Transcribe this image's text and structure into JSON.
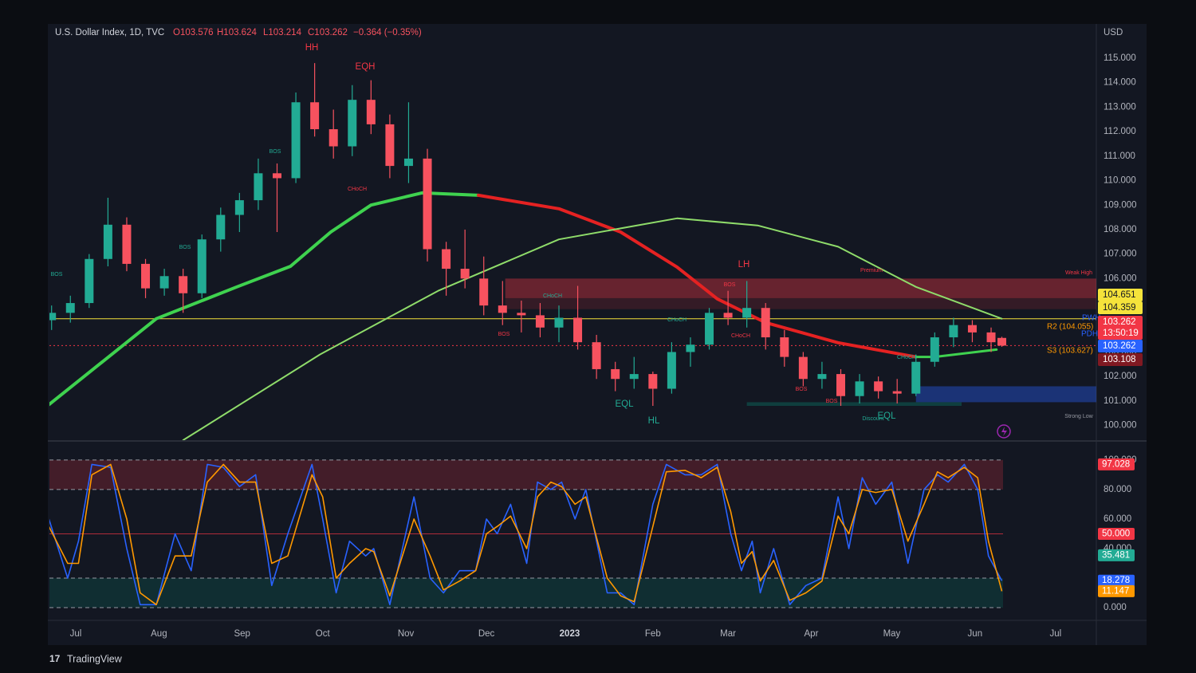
{
  "header": {
    "symbol": "U.S. Dollar Index, 1D, TVC",
    "ohlc": [
      "O103.576",
      "H103.624",
      "L103.214",
      "C103.262",
      "−0.364 (−0.35%)"
    ]
  },
  "footer": "TradingView",
  "chart_data": [
    {
      "type": "candlestick",
      "currency": "USD",
      "x": [
        -9,
        -2,
        5,
        12,
        19,
        26,
        33,
        40,
        47,
        54,
        61,
        68,
        75,
        82,
        89,
        96,
        103,
        110,
        117,
        124,
        131,
        138,
        145,
        152,
        159,
        166,
        173,
        180,
        187,
        194,
        201,
        208,
        215,
        222,
        229,
        236,
        243,
        250,
        257,
        264,
        271,
        278,
        285,
        292,
        299,
        306,
        313,
        320,
        327,
        334,
        341,
        345
      ],
      "open": [
        104.3,
        104.6,
        105.0,
        106.8,
        108.2,
        106.6,
        105.6,
        106.1,
        105.4,
        107.6,
        108.6,
        109.2,
        110.3,
        110.1,
        113.2,
        112.1,
        111.4,
        113.3,
        112.3,
        110.6,
        110.9,
        107.2,
        106.4,
        106.0,
        104.9,
        104.6,
        104.5,
        104.0,
        104.4,
        103.4,
        102.3,
        101.9,
        102.1,
        101.5,
        103.0,
        103.3,
        104.6,
        104.4,
        104.8,
        103.6,
        102.8,
        101.9,
        102.1,
        101.2,
        101.8,
        101.4,
        101.3,
        102.6,
        103.6,
        104.1,
        103.8,
        103.576
      ],
      "high": [
        104.9,
        105.3,
        107.0,
        109.3,
        108.5,
        106.8,
        106.4,
        106.4,
        107.8,
        108.9,
        109.5,
        110.9,
        110.7,
        113.6,
        114.8,
        112.9,
        113.9,
        114.1,
        112.7,
        113.2,
        111.3,
        107.5,
        108.0,
        106.9,
        105.9,
        105.1,
        105.0,
        104.9,
        105.7,
        103.7,
        102.6,
        102.8,
        102.2,
        103.4,
        103.6,
        104.8,
        105.5,
        105.9,
        105.0,
        103.9,
        103.0,
        102.6,
        102.3,
        102.1,
        102.0,
        101.9,
        102.9,
        103.8,
        104.4,
        104.3,
        104.0,
        103.624
      ],
      "low": [
        103.9,
        104.2,
        104.8,
        106.5,
        106.3,
        105.2,
        105.3,
        104.6,
        105.2,
        107.1,
        107.9,
        108.8,
        107.9,
        109.9,
        111.8,
        110.9,
        111.0,
        111.9,
        110.1,
        109.9,
        106.7,
        105.3,
        105.6,
        104.5,
        104.1,
        103.8,
        103.6,
        103.4,
        103.1,
        101.9,
        101.4,
        101.5,
        100.8,
        101.3,
        102.4,
        103.1,
        104.1,
        104.0,
        103.1,
        102.4,
        101.6,
        101.5,
        100.8,
        100.9,
        101.1,
        100.9,
        101.2,
        102.4,
        103.2,
        103.4,
        103.0,
        103.214
      ],
      "close": [
        104.6,
        105.0,
        106.8,
        108.2,
        106.6,
        105.6,
        106.1,
        105.4,
        107.6,
        108.6,
        109.2,
        110.3,
        110.1,
        113.2,
        112.1,
        111.4,
        113.3,
        112.3,
        110.6,
        110.9,
        107.2,
        106.4,
        106.0,
        104.9,
        104.6,
        104.5,
        104.0,
        104.4,
        103.4,
        102.3,
        101.9,
        102.1,
        101.5,
        103.0,
        103.3,
        104.6,
        104.4,
        104.8,
        103.6,
        102.8,
        101.9,
        102.1,
        101.2,
        101.8,
        101.4,
        101.3,
        102.6,
        103.6,
        104.1,
        103.8,
        103.4,
        103.262
      ],
      "up_color": "#22ab94",
      "down_color": "#f7525f",
      "xlim": [
        -9.8,
        380.2
      ],
      "xticks": [
        {
          "value": 0,
          "label": "Jul"
        },
        {
          "value": 31,
          "label": "Aug"
        },
        {
          "value": 62,
          "label": "Sep"
        },
        {
          "value": 92,
          "label": "Oct"
        },
        {
          "value": 123,
          "label": "Nov"
        },
        {
          "value": 153,
          "label": "Dec"
        },
        {
          "value": 184,
          "label": "2023"
        },
        {
          "value": 215,
          "label": "Feb"
        },
        {
          "value": 243,
          "label": "Mar"
        },
        {
          "value": 274,
          "label": "Apr"
        },
        {
          "value": 304,
          "label": "May"
        },
        {
          "value": 335,
          "label": "Jun"
        },
        {
          "value": 365,
          "label": "Jul"
        }
      ],
      "ylim": [
        99.4,
        116.4
      ],
      "yticks": [
        {
          "value": 100,
          "label": "100.000"
        },
        {
          "value": 101,
          "label": "101.000"
        },
        {
          "value": 102,
          "label": "102.000"
        },
        {
          "value": 103,
          "label": "103.000"
        },
        {
          "value": 104,
          "label": "104.000"
        },
        {
          "value": 105,
          "label": "105.000"
        },
        {
          "value": 106,
          "label": "106.000"
        },
        {
          "value": 107,
          "label": "107.000"
        },
        {
          "value": 108,
          "label": "108.000"
        },
        {
          "value": 109,
          "label": "109.000"
        },
        {
          "value": 110,
          "label": "110.000"
        },
        {
          "value": 111,
          "label": "111.000"
        },
        {
          "value": 112,
          "label": "112.000"
        },
        {
          "value": 113,
          "label": "113.000"
        },
        {
          "value": 114,
          "label": "114.000"
        },
        {
          "value": 115,
          "label": "115.000"
        }
      ],
      "zones": [
        {
          "x": [
            160,
            380.2
          ],
          "y": [
            105.2,
            106.0
          ],
          "color": "rgba(242,54,69,0.38)"
        },
        {
          "x": [
            160,
            380.2
          ],
          "y": [
            104.75,
            105.2
          ],
          "color": "rgba(242,54,69,0.15)"
        },
        {
          "x": [
            313,
            380.2
          ],
          "y": [
            100.95,
            101.6
          ],
          "color": "rgba(41,98,255,0.38)"
        },
        {
          "x": [
            250,
            330
          ],
          "y": [
            100.8,
            100.95
          ],
          "color": "rgba(8,153,129,0.3)"
        }
      ],
      "overlays": [
        {
          "color": "#3fd24f",
          "width": 4,
          "x": [
            -10,
            30,
            60,
            80,
            95,
            110,
            129,
            150
          ],
          "values": [
            100.85,
            104.36,
            105.66,
            106.5,
            107.9,
            109.0,
            109.5,
            109.4
          ]
        },
        {
          "color": "#e52222",
          "width": 4,
          "x": [
            150,
            180,
            203,
            224,
            239,
            257,
            284,
            313
          ],
          "values": [
            109.4,
            108.85,
            107.9,
            106.47,
            105.17,
            104.2,
            103.38,
            102.8
          ]
        },
        {
          "color": "#3fd24f",
          "width": 3,
          "x": [
            313,
            320,
            343
          ],
          "values": [
            102.8,
            102.8,
            103.1
          ]
        },
        {
          "color": "#8fdc6a",
          "width": 2,
          "x": [
            40,
            91,
            135,
            180,
            224,
            254,
            284,
            313,
            345
          ],
          "values": [
            99.4,
            102.9,
            105.5,
            107.6,
            108.46,
            108.17,
            107.3,
            105.66,
            104.36
          ]
        }
      ],
      "price_flags": [
        {
          "value": 104.651,
          "color": "#f5e33b",
          "text_color": "#131722"
        },
        {
          "value": 104.359,
          "color": "#f5e33b",
          "text_color": "#131722",
          "line": "solid"
        },
        {
          "value": 103.262,
          "color": "#f23645",
          "text_color": "#ffffff",
          "line": "dotted"
        },
        {
          "value": 103.262,
          "color": "#2962ff",
          "text_color": "#ffffff"
        },
        {
          "value": 103.108,
          "color": "#801922",
          "text_color": "#ffffff"
        }
      ],
      "countdown": "13:50:19",
      "annotations": [
        {
          "text": "HH",
          "color": "#f23645"
        },
        {
          "text": "EQH",
          "color": "#f23645"
        },
        {
          "text": "LH",
          "color": "#f23645"
        },
        {
          "text": "EQL",
          "color": "#22ab94"
        },
        {
          "text": "HL",
          "color": "#22ab94"
        },
        {
          "text": "EQL",
          "color": "#22ab94"
        },
        {
          "text": "Premium",
          "color": "#f23645"
        },
        {
          "text": "Discount",
          "color": "#22ab94"
        },
        {
          "text": "Strong Low",
          "color": "#9598a1"
        },
        {
          "text": "Weak High",
          "color": "#f23645"
        },
        {
          "text": "PWH",
          "color": "#2962ff"
        },
        {
          "text": "PDH",
          "color": "#2962ff"
        },
        {
          "text": "R2 (104.055)",
          "color": "#ff9800"
        },
        {
          "text": "S3 (103.627)",
          "color": "#ff9800"
        },
        {
          "text": "BOS",
          "color": "#22ab94"
        },
        {
          "text": "BOS",
          "color": "#22ab94"
        },
        {
          "text": "BOS",
          "color": "#22ab94"
        },
        {
          "text": "CHoCH",
          "color": "#f23645"
        },
        {
          "text": "CHoCH",
          "color": "#22ab94"
        },
        {
          "text": "CHoCH",
          "color": "#22ab94"
        },
        {
          "text": "BOS",
          "color": "#f23645"
        },
        {
          "text": "BOS",
          "color": "#f23645"
        },
        {
          "text": "CHoCH",
          "color": "#f23645"
        },
        {
          "text": "CHoCH",
          "color": "#22ab94"
        },
        {
          "text": "BOS",
          "color": "#f23645"
        },
        {
          "text": "BOS",
          "color": "#f23645"
        }
      ]
    },
    {
      "type": "line",
      "x": [
        -10,
        -3,
        1,
        6,
        13,
        19,
        24,
        30,
        37,
        43,
        49,
        55,
        61,
        67,
        73,
        79,
        88,
        92,
        97,
        102,
        108,
        111,
        117,
        126,
        132,
        137,
        143,
        149,
        153,
        157,
        162,
        168,
        172,
        177,
        181,
        186,
        190,
        198,
        203,
        208,
        215,
        220,
        227,
        233,
        239,
        244,
        248,
        252,
        255,
        260,
        266,
        272,
        278,
        284,
        288,
        293,
        298,
        304,
        310,
        316,
        321,
        325,
        331,
        336,
        340,
        345
      ],
      "series": [
        {
          "color": "#2962ff",
          "values": [
            60,
            20,
            45,
            97,
            95,
            40,
            2,
            2,
            50,
            25,
            97,
            95,
            82,
            90,
            15,
            50,
            97,
            60,
            10,
            45,
            35,
            40,
            2,
            75,
            20,
            10,
            25,
            25,
            60,
            50,
            70,
            30,
            85,
            80,
            85,
            60,
            80,
            10,
            10,
            2,
            70,
            97,
            90,
            90,
            97,
            50,
            25,
            45,
            10,
            40,
            2,
            15,
            20,
            75,
            40,
            88,
            70,
            85,
            30,
            80,
            90,
            85,
            97,
            80,
            35,
            18.278
          ]
        },
        {
          "color": "#ff9800",
          "values": [
            55,
            30,
            30,
            90,
            97,
            60,
            10,
            2,
            35,
            35,
            85,
            97,
            85,
            85,
            30,
            35,
            90,
            75,
            20,
            30,
            40,
            38,
            8,
            60,
            35,
            12,
            18,
            25,
            50,
            55,
            62,
            40,
            75,
            85,
            82,
            70,
            75,
            20,
            8,
            4,
            55,
            92,
            93,
            88,
            95,
            65,
            30,
            38,
            18,
            32,
            5,
            10,
            18,
            62,
            50,
            80,
            78,
            80,
            45,
            70,
            92,
            88,
            95,
            88,
            45,
            11.147
          ]
        }
      ],
      "xlim": [
        -9.8,
        380.2
      ],
      "ylim": [
        -7,
        101
      ],
      "yticks": [
        {
          "value": 0,
          "label": "0.000"
        },
        {
          "value": 40,
          "label": "40.000"
        },
        {
          "value": 60,
          "label": "60.000"
        },
        {
          "value": 80,
          "label": "80.000"
        },
        {
          "value": 100,
          "label": "100.000"
        }
      ],
      "bands": [
        {
          "range": [
            80,
            100
          ],
          "color": "rgba(242,54,69,0.22)"
        },
        {
          "range": [
            0,
            20
          ],
          "color": "rgba(8,153,129,0.18)"
        }
      ],
      "levels": [
        0,
        20,
        80,
        100
      ],
      "midline": {
        "value": 50,
        "color": "#f23645"
      },
      "flags": [
        {
          "value": 97.028,
          "label": "97.028",
          "color": "#f23645"
        },
        {
          "value": 50,
          "label": "50.000",
          "color": "#f23645"
        },
        {
          "value": 35.481,
          "label": "35.481",
          "color": "#22ab94"
        },
        {
          "value": 18.278,
          "label": "18.278",
          "color": "#2962ff"
        },
        {
          "value": 11.147,
          "label": "11.147",
          "color": "#ff9800"
        }
      ]
    }
  ]
}
